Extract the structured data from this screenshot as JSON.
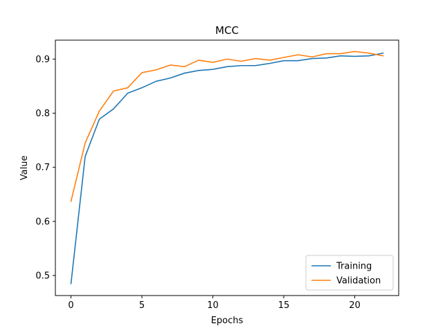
{
  "chart_data": {
    "type": "line",
    "title": "MCC",
    "xlabel": "Epochs",
    "ylabel": "Value",
    "xlim": [
      -1.1,
      23.1
    ],
    "ylim": [
      0.463,
      0.935
    ],
    "xticks": [
      0,
      5,
      10,
      15,
      20
    ],
    "yticks": [
      0.5,
      0.6,
      0.7,
      0.8,
      0.9
    ],
    "grid": false,
    "legend_position": "lower-right",
    "x": [
      0,
      1,
      2,
      3,
      4,
      5,
      6,
      7,
      8,
      9,
      10,
      11,
      12,
      13,
      14,
      15,
      16,
      17,
      18,
      19,
      20,
      21,
      22
    ],
    "series": [
      {
        "name": "Training",
        "color": "#1f77b4",
        "values": [
          0.485,
          0.72,
          0.789,
          0.808,
          0.837,
          0.847,
          0.859,
          0.865,
          0.874,
          0.879,
          0.881,
          0.886,
          0.888,
          0.888,
          0.892,
          0.897,
          0.897,
          0.901,
          0.902,
          0.906,
          0.905,
          0.906,
          0.911
        ]
      },
      {
        "name": "Validation",
        "color": "#ff7f0e",
        "values": [
          0.637,
          0.745,
          0.804,
          0.841,
          0.847,
          0.875,
          0.88,
          0.889,
          0.886,
          0.898,
          0.894,
          0.9,
          0.896,
          0.901,
          0.898,
          0.903,
          0.908,
          0.904,
          0.91,
          0.91,
          0.914,
          0.911,
          0.906
        ]
      }
    ]
  }
}
